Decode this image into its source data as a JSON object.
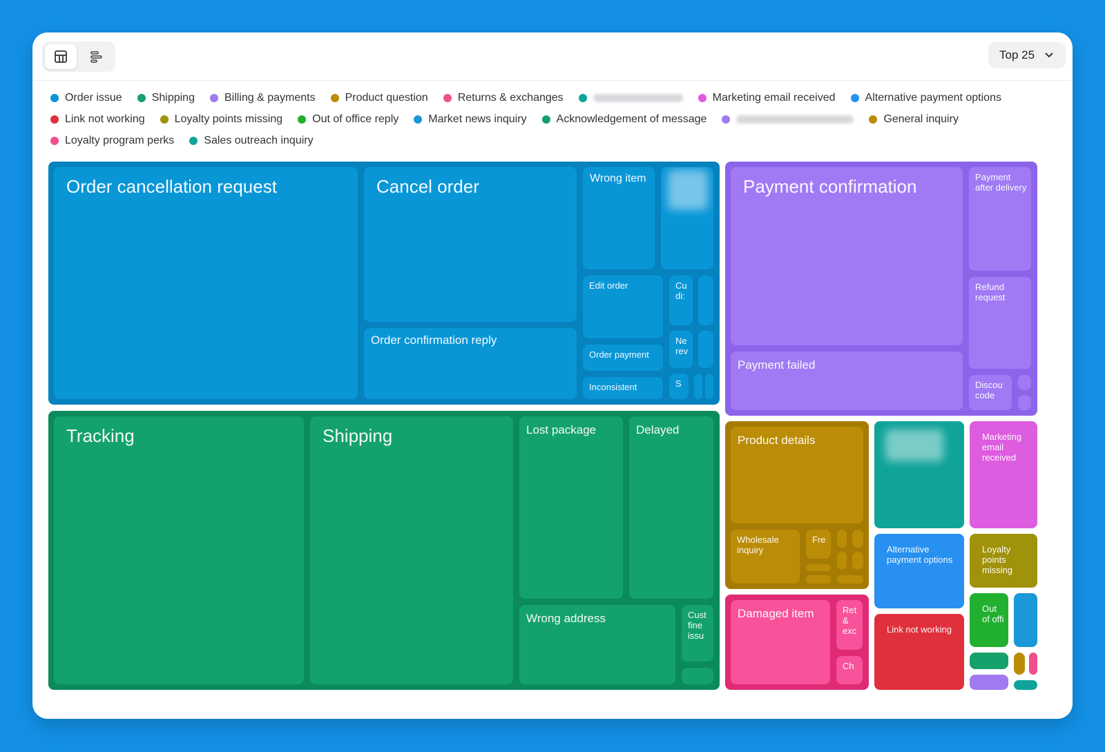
{
  "toolbar": {
    "top_select_label": "Top 25"
  },
  "legend": [
    {
      "label": "Order issue",
      "color": "#0a97d8"
    },
    {
      "label": "Shipping",
      "color": "#16a06c"
    },
    {
      "label": "Billing & payments",
      "color": "#a07af0"
    },
    {
      "label": "Product question",
      "color": "#bb8c06"
    },
    {
      "label": "Returns & exchanges",
      "color": "#f0508c"
    },
    {
      "label": "",
      "color": "#10a39a",
      "blurred": true
    },
    {
      "label": "Marketing email received",
      "color": "#dd5ce0"
    },
    {
      "label": "Alternative payment options",
      "color": "#2790f0"
    },
    {
      "label": "Link not working",
      "color": "#e0303c"
    },
    {
      "label": "Loyalty points missing",
      "color": "#a0920a"
    },
    {
      "label": "Out of office reply",
      "color": "#22b030"
    },
    {
      "label": "Market news inquiry",
      "color": "#1a98d8"
    },
    {
      "label": "Acknowledgement of message",
      "color": "#16a06c"
    },
    {
      "label": "",
      "color": "#a07af0",
      "blurred": true
    },
    {
      "label": "General inquiry",
      "color": "#bb8c06"
    },
    {
      "label": "Loyalty program perks",
      "color": "#f0508c"
    },
    {
      "label": "Sales outreach inquiry",
      "color": "#10a39a"
    }
  ],
  "treemap": {
    "order_issue": {
      "order_cancellation_request": "Order cancellation request",
      "cancel_order": "Cancel order",
      "order_confirmation_reply": "Order confirmation reply",
      "wrong_item": "Wrong item",
      "edit_order": "Edit order",
      "order_payment": "Order payment",
      "inconsistent": "Inconsistent",
      "cu_di": "Cu di:",
      "ne_rev": "Ne rev",
      "s": "S"
    },
    "shipping": {
      "tracking": "Tracking",
      "shipping": "Shipping",
      "lost_package": "Lost package",
      "delayed": "Delayed",
      "wrong_address": "Wrong address",
      "cust_fine_issue": "Cust fine issu"
    },
    "billing": {
      "payment_confirmation": "Payment confirmation",
      "payment_failed": "Payment failed",
      "payment_after_delivery": "Payment after delivery",
      "refund_request": "Refund request",
      "discou_code": "Discou code"
    },
    "product_question": {
      "product_details": "Product details",
      "wholesale_inquiry": "Wholesale inquiry",
      "fre": "Fre"
    },
    "returns": {
      "damaged_item": "Damaged item",
      "ret_exc": "Ret & exc",
      "ch": "Ch"
    },
    "others": {
      "marketing_email": "Marketing email received",
      "alternative_payment": "Alternative payment options",
      "loyalty_points": "Loyalty points missing",
      "link_not_working": "Link not working",
      "out_of_office": "Out of offi"
    }
  }
}
